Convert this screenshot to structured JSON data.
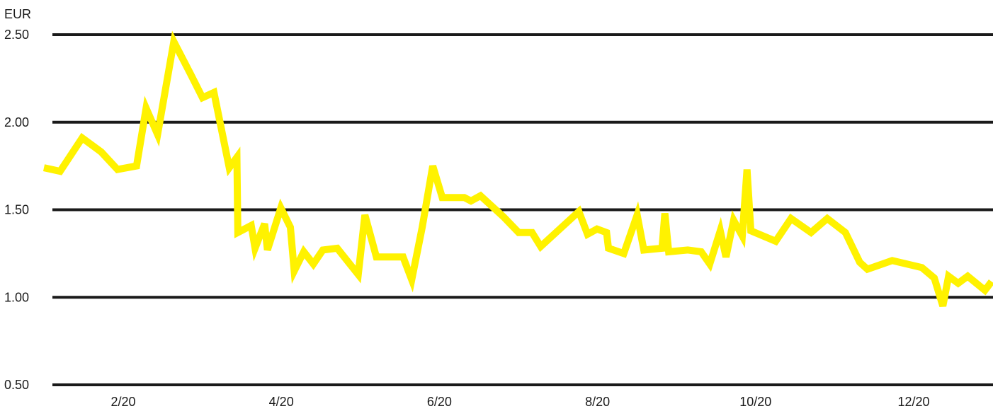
{
  "chart_data": {
    "type": "line",
    "unit_label": "EUR",
    "title": "",
    "xlabel": "",
    "ylabel": "EUR",
    "grid": true,
    "legend": "none",
    "ylim": [
      0.5,
      2.5
    ],
    "y_ticks": [
      {
        "value": 2.5,
        "label": "2.50"
      },
      {
        "value": 2.0,
        "label": "2.00"
      },
      {
        "value": 1.5,
        "label": "1.50"
      },
      {
        "value": 1.0,
        "label": "1.00"
      },
      {
        "value": 0.5,
        "label": "0.50"
      }
    ],
    "xlim": [
      0.55,
      12.9
    ],
    "x_ticks": [
      {
        "value": 2,
        "label": "2/20"
      },
      {
        "value": 4,
        "label": "4/20"
      },
      {
        "value": 6,
        "label": "6/20"
      },
      {
        "value": 8,
        "label": "8/20"
      },
      {
        "value": 10,
        "label": "10/20"
      },
      {
        "value": 12,
        "label": "12/20"
      }
    ],
    "series": [
      {
        "color": "#fff200",
        "gridline_color": "#1a1a1a",
        "points": [
          [
            0.55,
            1.74
          ],
          [
            0.72,
            1.72
          ],
          [
            0.95,
            1.91
          ],
          [
            1.15,
            1.83
          ],
          [
            1.32,
            1.73
          ],
          [
            1.52,
            1.75
          ],
          [
            1.62,
            2.08
          ],
          [
            1.74,
            1.93
          ],
          [
            1.91,
            2.46
          ],
          [
            2.09,
            2.27
          ],
          [
            2.21,
            2.14
          ],
          [
            2.33,
            2.17
          ],
          [
            2.49,
            1.74
          ],
          [
            2.57,
            1.8
          ],
          [
            2.58,
            1.37
          ],
          [
            2.72,
            1.41
          ],
          [
            2.76,
            1.28
          ],
          [
            2.86,
            1.42
          ],
          [
            2.89,
            1.27
          ],
          [
            3.03,
            1.51
          ],
          [
            3.13,
            1.4
          ],
          [
            3.17,
            1.15
          ],
          [
            3.27,
            1.26
          ],
          [
            3.37,
            1.19
          ],
          [
            3.47,
            1.27
          ],
          [
            3.62,
            1.28
          ],
          [
            3.84,
            1.13
          ],
          [
            3.91,
            1.47
          ],
          [
            4.03,
            1.23
          ],
          [
            4.31,
            1.23
          ],
          [
            4.4,
            1.1
          ],
          [
            4.51,
            1.4
          ],
          [
            4.62,
            1.75
          ],
          [
            4.72,
            1.57
          ],
          [
            4.95,
            1.57
          ],
          [
            5.02,
            1.55
          ],
          [
            5.12,
            1.58
          ],
          [
            5.36,
            1.46
          ],
          [
            5.52,
            1.37
          ],
          [
            5.66,
            1.37
          ],
          [
            5.75,
            1.29
          ],
          [
            6.15,
            1.49
          ],
          [
            6.24,
            1.36
          ],
          [
            6.34,
            1.39
          ],
          [
            6.44,
            1.37
          ],
          [
            6.46,
            1.28
          ],
          [
            6.62,
            1.25
          ],
          [
            6.76,
            1.47
          ],
          [
            6.83,
            1.27
          ],
          [
            7.02,
            1.28
          ],
          [
            7.05,
            1.48
          ],
          [
            7.09,
            1.26
          ],
          [
            7.29,
            1.27
          ],
          [
            7.43,
            1.26
          ],
          [
            7.52,
            1.19
          ],
          [
            7.63,
            1.38
          ],
          [
            7.69,
            1.23
          ],
          [
            7.77,
            1.44
          ],
          [
            7.86,
            1.35
          ],
          [
            7.91,
            1.73
          ],
          [
            7.95,
            1.38
          ],
          [
            8.21,
            1.32
          ],
          [
            8.37,
            1.45
          ],
          [
            8.58,
            1.37
          ],
          [
            8.75,
            1.45
          ],
          [
            8.94,
            1.37
          ],
          [
            9.09,
            1.2
          ],
          [
            9.17,
            1.16
          ],
          [
            9.43,
            1.21
          ],
          [
            9.74,
            1.17
          ],
          [
            9.87,
            1.11
          ],
          [
            9.96,
            0.95
          ],
          [
            10.02,
            1.12
          ],
          [
            10.12,
            1.08
          ],
          [
            10.22,
            1.12
          ],
          [
            10.4,
            1.04
          ],
          [
            10.47,
            1.09
          ]
        ]
      }
    ]
  }
}
